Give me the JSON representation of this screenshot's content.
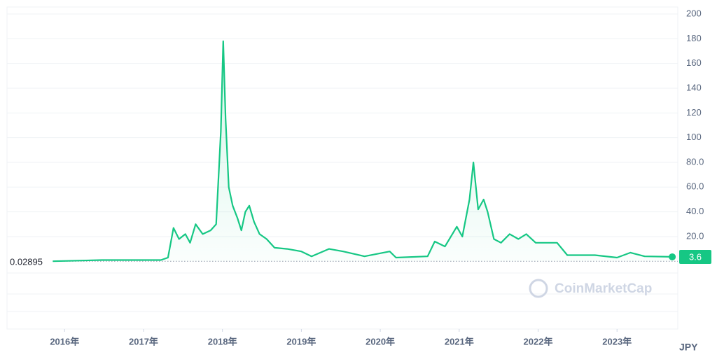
{
  "chart_data": {
    "type": "line",
    "x": [
      2015.85,
      2016.47,
      2017.22,
      2017.31,
      2017.38,
      2017.45,
      2017.53,
      2017.59,
      2017.66,
      2017.75,
      2017.85,
      2017.92,
      2017.98,
      2018.01,
      2018.04,
      2018.08,
      2018.13,
      2018.19,
      2018.24,
      2018.29,
      2018.34,
      2018.4,
      2018.47,
      2018.56,
      2018.66,
      2018.82,
      2019.0,
      2019.13,
      2019.35,
      2019.53,
      2019.8,
      2020.12,
      2020.2,
      2020.6,
      2020.69,
      2020.82,
      2020.97,
      2021.04,
      2021.13,
      2021.18,
      2021.24,
      2021.31,
      2021.36,
      2021.44,
      2021.53,
      2021.64,
      2021.75,
      2021.85,
      2021.97,
      2022.24,
      2022.37,
      2022.72,
      2023.0,
      2023.17,
      2023.35,
      2023.7
    ],
    "values": [
      0.02895,
      1,
      1,
      3,
      27,
      18,
      22,
      15,
      30,
      22,
      25,
      30,
      105,
      178,
      115,
      60,
      45,
      35,
      25,
      40,
      45,
      32,
      22,
      18,
      11,
      10,
      8,
      4,
      10,
      8,
      4,
      8,
      3,
      4,
      16,
      12,
      28,
      20,
      50,
      80,
      42,
      50,
      40,
      18,
      15,
      22,
      18,
      22,
      15,
      15,
      5,
      5,
      3,
      7,
      4,
      3.6
    ],
    "color": "#16c784",
    "xlim": [
      2015.27,
      2023.77
    ],
    "xticks": [
      {
        "value": 2016,
        "label": "2016年"
      },
      {
        "value": 2017,
        "label": "2017年"
      },
      {
        "value": 2018,
        "label": "2018年"
      },
      {
        "value": 2019,
        "label": "2019年"
      },
      {
        "value": 2020,
        "label": "2020年"
      },
      {
        "value": 2021,
        "label": "2021年"
      },
      {
        "value": 2022,
        "label": "2022年"
      },
      {
        "value": 2023,
        "label": "2023年"
      }
    ],
    "ylim": [
      0,
      200
    ],
    "yticks": [
      {
        "value": 20,
        "label": "20.0"
      },
      {
        "value": 40,
        "label": "40.0"
      },
      {
        "value": 60,
        "label": "60.0"
      },
      {
        "value": 80,
        "label": "80.0"
      },
      100,
      120,
      140,
      160,
      180,
      200
    ],
    "currency": "JPY",
    "watermark": "CoinMarketCap",
    "grid": true
  }
}
